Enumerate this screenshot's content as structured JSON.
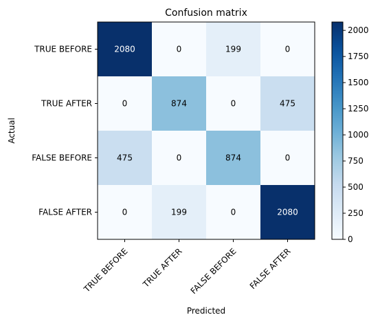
{
  "chart_data": {
    "type": "heatmap",
    "title": "Confusion matrix",
    "xlabel": "Predicted",
    "ylabel": "Actual",
    "x_categories": [
      "TRUE BEFORE",
      "TRUE AFTER",
      "FALSE BEFORE",
      "FALSE AFTER"
    ],
    "y_categories": [
      "TRUE BEFORE",
      "TRUE AFTER",
      "FALSE BEFORE",
      "FALSE AFTER"
    ],
    "values": [
      [
        2080,
        0,
        199,
        0
      ],
      [
        0,
        874,
        0,
        475
      ],
      [
        475,
        0,
        874,
        0
      ],
      [
        0,
        199,
        0,
        2080
      ]
    ],
    "colormap": "Blues",
    "colorbar": {
      "ticks": [
        0,
        250,
        500,
        750,
        1000,
        1250,
        1500,
        1750,
        2000
      ],
      "range": [
        0,
        2080
      ]
    },
    "cell_text_colors": {
      "dark": "#ffffff",
      "light": "#000000"
    },
    "grid": false
  }
}
